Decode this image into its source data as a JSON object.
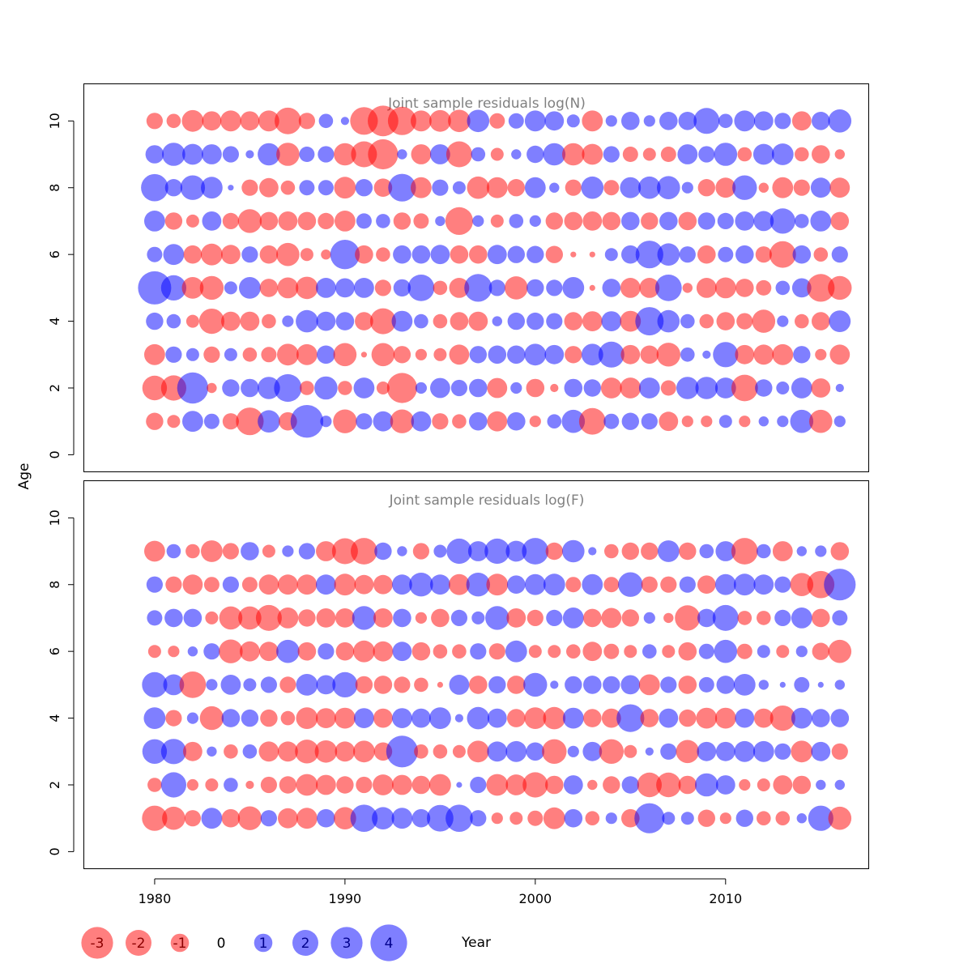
{
  "chart_data": {
    "type": "bubble",
    "xlabel": "Year",
    "ylabel": "Age",
    "xlim": [
      1976.3,
      2017.5
    ],
    "ylim": [
      -0.5,
      11.1
    ],
    "x_ticks": [
      1980,
      1990,
      2000,
      2010
    ],
    "x_tick_labels": [
      "1980",
      "1990",
      "2000",
      "2010"
    ],
    "y_ticks": [
      0,
      2,
      4,
      6,
      8,
      10
    ],
    "y_tick_labels": [
      "0",
      "2",
      "4",
      "6",
      "8",
      "10"
    ],
    "colors": {
      "positive": "#0000ff",
      "negative": "#ff0000",
      "opacity": 0.5
    },
    "years": [
      1980,
      1981,
      1982,
      1983,
      1984,
      1985,
      1986,
      1987,
      1988,
      1989,
      1990,
      1991,
      1992,
      1993,
      1994,
      1995,
      1996,
      1997,
      1998,
      1999,
      2000,
      2001,
      2002,
      2003,
      2004,
      2005,
      2006,
      2007,
      2008,
      2009,
      2010,
      2011,
      2012,
      2013,
      2014,
      2015,
      2016
    ],
    "panels": [
      {
        "title": "Joint sample residuals log(N)",
        "ages": [
          1,
          2,
          3,
          4,
          5,
          6,
          7,
          8,
          9,
          10
        ],
        "residuals": [
          [
            -0.9,
            -0.5,
            1.3,
            0.7,
            -0.8,
            -2.3,
            1.5,
            -1.0,
            3.2,
            0.4,
            -1.7,
            0.8,
            1.2,
            -1.7,
            1.2,
            -0.8,
            -0.6,
            1.0,
            -1.2,
            1.0,
            -0.4,
            0.6,
            1.6,
            -2.1,
            0.7,
            0.9,
            0.8,
            -1.1,
            -0.4,
            -0.4,
            0.5,
            -0.4,
            0.3,
            0.4,
            1.6,
            -1.6,
            0.4
          ],
          [
            -1.8,
            -1.9,
            2.9,
            -0.3,
            0.9,
            1.0,
            1.5,
            2.3,
            -0.6,
            1.6,
            -0.6,
            1.3,
            -0.5,
            -2.7,
            0.4,
            1.2,
            0.8,
            1.0,
            -1.2,
            0.4,
            -1.0,
            -0.2,
            1.0,
            0.9,
            -1.3,
            -1.3,
            1.3,
            -0.7,
            1.5,
            1.5,
            1.3,
            -2.1,
            0.9,
            0.5,
            1.3,
            -1.1,
            0.2
          ],
          [
            -1.3,
            0.8,
            0.5,
            -0.8,
            0.5,
            -0.6,
            -0.7,
            -1.4,
            -1.3,
            1.0,
            -1.6,
            -0.1,
            -1.6,
            -0.9,
            -0.4,
            -0.5,
            -1.2,
            0.9,
            1.0,
            1.0,
            1.4,
            1.1,
            -0.9,
            1.4,
            2.0,
            -1.1,
            -1.0,
            -1.7,
            0.6,
            0.2,
            1.9,
            -1.1,
            -1.2,
            -1.3,
            0.9,
            -0.4,
            -1.2
          ],
          [
            0.9,
            0.6,
            -0.5,
            -1.9,
            -1.1,
            -1.1,
            -0.6,
            0.4,
            1.5,
            1.1,
            1.0,
            -1.0,
            -2.0,
            1.3,
            0.6,
            -0.6,
            -1.0,
            -1.1,
            0.3,
            0.9,
            0.9,
            0.8,
            -1.0,
            -1.2,
            1.2,
            -1.3,
            2.4,
            1.5,
            0.6,
            -0.6,
            -1.0,
            -0.8,
            -1.6,
            0.4,
            -0.6,
            -1.0,
            1.4
          ],
          [
            3.3,
            1.9,
            -1.4,
            -1.7,
            0.5,
            1.4,
            -1.0,
            -1.3,
            -1.5,
            1.2,
            1.1,
            1.2,
            -0.8,
            0.9,
            2.1,
            -0.6,
            -1.2,
            2.3,
            0.8,
            -1.6,
            0.9,
            0.8,
            1.4,
            -0.1,
            1.0,
            -1.2,
            -1.2,
            2.1,
            -0.3,
            -1.2,
            -1.3,
            -1.0,
            -0.7,
            0.6,
            1.1,
            -2.3,
            -1.7
          ],
          [
            0.7,
            1.3,
            -1.0,
            -1.4,
            -1.1,
            0.8,
            -1.0,
            -1.6,
            -0.5,
            -0.3,
            2.6,
            -1.0,
            -0.6,
            1.0,
            1.0,
            1.1,
            -1.0,
            -1.0,
            1.1,
            0.9,
            0.9,
            -0.9,
            -0.1,
            -0.1,
            0.5,
            1.0,
            2.3,
            1.5,
            0.8,
            -1.0,
            0.7,
            1.0,
            -0.8,
            -2.1,
            1.0,
            -0.6,
            0.8
          ],
          [
            1.3,
            -0.9,
            -0.5,
            1.1,
            -0.8,
            -1.7,
            -1.0,
            -1.1,
            -1.0,
            -0.8,
            -1.3,
            0.7,
            0.6,
            -0.9,
            -0.7,
            0.3,
            -2.3,
            0.4,
            -0.5,
            0.6,
            0.4,
            -0.9,
            -1.0,
            -1.1,
            -1.0,
            1.0,
            -0.9,
            1.0,
            -1.0,
            0.9,
            0.8,
            1.1,
            1.2,
            1.9,
            0.6,
            1.3,
            -1.0
          ],
          [
            2.2,
            0.9,
            1.8,
            1.4,
            0.1,
            -0.8,
            -1.1,
            -0.6,
            0.7,
            0.7,
            -1.4,
            0.9,
            -1.0,
            2.3,
            -1.3,
            0.8,
            0.5,
            -1.5,
            -1.3,
            -0.9,
            1.3,
            0.3,
            -0.8,
            1.5,
            -0.7,
            1.3,
            1.5,
            1.6,
            0.4,
            -0.9,
            -1.2,
            1.8,
            -0.3,
            -1.3,
            -0.8,
            1.2,
            -1.2
          ],
          [
            1.0,
            1.6,
            1.3,
            1.2,
            0.8,
            0.2,
            1.5,
            -1.6,
            0.7,
            0.8,
            -1.5,
            -2.0,
            -2.7,
            0.3,
            -1.2,
            1.2,
            -2.0,
            0.6,
            -0.5,
            0.3,
            0.9,
            1.5,
            -1.5,
            -1.3,
            0.8,
            -0.7,
            -0.5,
            -0.7,
            1.2,
            0.8,
            1.6,
            -0.6,
            1.3,
            1.4,
            -0.6,
            -1.0,
            -0.3
          ],
          [
            -0.8,
            -0.6,
            -1.4,
            -1.1,
            -1.3,
            -1.1,
            -1.3,
            -2.1,
            -0.8,
            0.6,
            0.2,
            -2.3,
            -2.8,
            -2.4,
            -1.3,
            -1.4,
            -1.5,
            1.5,
            -0.7,
            0.7,
            1.3,
            1.1,
            0.5,
            -1.3,
            0.4,
            1.0,
            0.4,
            1.0,
            1.0,
            2.0,
            0.6,
            1.3,
            1.1,
            0.8,
            -1.1,
            1.0,
            1.6
          ]
        ]
      },
      {
        "title": "Joint sample residuals log(F)",
        "ages": [
          1,
          2,
          3,
          4,
          5,
          6,
          7,
          8,
          9
        ],
        "residuals": [
          [
            -1.9,
            -1.6,
            -0.8,
            1.3,
            -1.0,
            -1.7,
            0.8,
            -1.2,
            -1.3,
            1.0,
            -1.5,
            2.2,
            1.5,
            1.3,
            1.0,
            2.1,
            2.2,
            0.8,
            -0.4,
            -0.5,
            -0.7,
            -1.4,
            1.0,
            -0.6,
            0.4,
            -1.0,
            2.7,
            0.5,
            0.5,
            -0.9,
            -0.4,
            0.9,
            -0.6,
            -0.6,
            0.3,
            1.9,
            -1.6
          ],
          [
            -0.6,
            1.9,
            -0.4,
            -0.5,
            0.6,
            -0.2,
            -0.8,
            -0.9,
            -1.4,
            -1.2,
            -0.9,
            -0.8,
            -1.3,
            -1.2,
            -1.0,
            -1.4,
            0.1,
            0.8,
            -1.4,
            -1.3,
            -1.9,
            -1.0,
            1.1,
            -0.3,
            -0.9,
            0.9,
            -1.8,
            -1.8,
            -1.0,
            1.6,
            1.1,
            -0.4,
            -0.5,
            -1.1,
            -1.0,
            0.3,
            0.3
          ],
          [
            1.8,
            1.9,
            -1.1,
            0.3,
            -0.6,
            0.6,
            -1.2,
            -1.2,
            -1.7,
            -1.5,
            -1.2,
            -1.4,
            -1.0,
            3.0,
            -0.6,
            -0.6,
            -0.5,
            -1.4,
            1.2,
            1.3,
            1.0,
            -1.8,
            0.4,
            1.1,
            -1.8,
            -0.5,
            0.2,
            0.8,
            -1.6,
            1.1,
            1.1,
            1.3,
            1.3,
            0.8,
            -1.4,
            1.1,
            -0.8
          ],
          [
            1.4,
            -0.8,
            0.4,
            -1.7,
            1.0,
            0.9,
            -0.9,
            -0.6,
            -1.4,
            -1.2,
            -1.3,
            1.2,
            -1.1,
            1.2,
            1.1,
            1.4,
            0.2,
            1.5,
            1.1,
            -1.0,
            -1.4,
            -1.5,
            1.3,
            -1.0,
            -1.1,
            2.3,
            -1.0,
            1.1,
            -0.9,
            -1.3,
            -1.3,
            1.1,
            -1.1,
            -1.9,
            1.3,
            1.0,
            1.0
          ],
          [
            1.9,
            1.3,
            -2.1,
            0.4,
            1.2,
            0.5,
            0.8,
            -0.8,
            1.4,
            1.1,
            1.9,
            -0.9,
            -1.0,
            -0.8,
            -0.6,
            -0.1,
            1.2,
            -1.0,
            0.9,
            -1.0,
            1.7,
            0.2,
            0.9,
            1.0,
            0.9,
            1.1,
            -1.3,
            0.8,
            -1.0,
            0.7,
            1.0,
            1.4,
            0.3,
            0.1,
            0.7,
            0.1,
            0.3
          ],
          [
            -0.5,
            -0.4,
            0.3,
            0.8,
            -1.7,
            -1.2,
            -1.1,
            1.6,
            -1.0,
            0.8,
            -1.0,
            -1.4,
            -1.2,
            1.1,
            -1.0,
            -0.6,
            -0.6,
            0.8,
            -0.8,
            1.4,
            -0.5,
            -0.5,
            -0.6,
            -1.1,
            -0.7,
            -0.5,
            0.6,
            -0.5,
            -1.0,
            0.7,
            1.6,
            -0.7,
            0.5,
            -0.5,
            0.4,
            -0.9,
            -1.6
          ],
          [
            0.7,
            1.0,
            1.0,
            -0.5,
            -1.6,
            -1.6,
            -2.0,
            -1.3,
            -0.9,
            -1.1,
            -1.1,
            1.7,
            -1.1,
            1.0,
            -0.4,
            -1.0,
            0.8,
            0.5,
            1.7,
            -1.1,
            -0.8,
            0.8,
            1.3,
            -1.0,
            -1.2,
            -0.9,
            0.4,
            -0.3,
            -1.9,
            1.0,
            2.0,
            -0.6,
            -0.6,
            0.8,
            1.3,
            -1.0,
            0.7
          ],
          [
            0.8,
            -0.8,
            -1.2,
            -0.7,
            0.8,
            -0.7,
            -1.2,
            -1.2,
            -1.2,
            1.2,
            -1.4,
            -1.1,
            -1.1,
            1.2,
            1.7,
            1.2,
            -1.3,
            1.7,
            -1.4,
            1.0,
            1.3,
            1.4,
            -0.7,
            1.3,
            -0.7,
            1.8,
            -0.8,
            -0.8,
            0.8,
            -1.0,
            1.3,
            1.4,
            1.2,
            0.8,
            -1.6,
            -2.2,
            3.0
          ],
          [
            -1.3,
            0.6,
            -0.6,
            -1.4,
            -0.8,
            1.0,
            -0.5,
            0.4,
            0.8,
            -1.2,
            -2.0,
            -2.1,
            0.9,
            0.3,
            -0.8,
            0.5,
            1.9,
            1.2,
            1.9,
            1.3,
            2.1,
            -0.9,
            1.5,
            0.2,
            -0.6,
            -0.9,
            -0.9,
            1.4,
            -0.9,
            0.6,
            1.2,
            -2.1,
            0.6,
            -1.2,
            0.3,
            0.4,
            -1.0
          ]
        ]
      }
    ],
    "legend": {
      "values": [
        -3,
        -2,
        -1,
        0,
        1,
        2,
        3,
        4
      ],
      "labels": [
        "-3",
        "-2",
        "-1",
        "0",
        "1",
        "2",
        "3",
        "4"
      ],
      "title": "Year"
    }
  }
}
